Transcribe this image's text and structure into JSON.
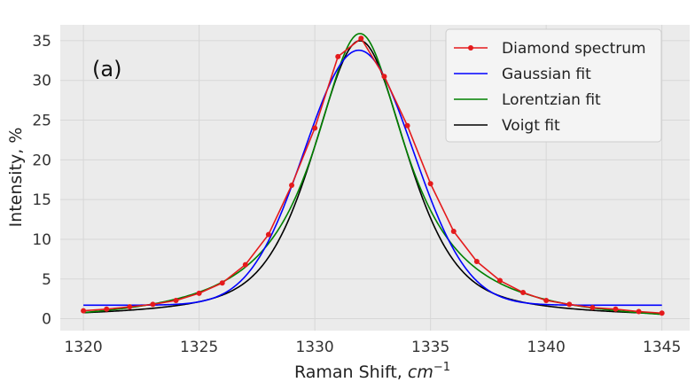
{
  "chart_data": {
    "type": "line",
    "xlabel": "Raman Shift, ",
    "xlabel_unit": "cm",
    "xlabel_unit_exp": "−1",
    "ylabel": "Intensity, %",
    "annotation": "(a)",
    "xlim": [
      1319,
      1346.2
    ],
    "ylim": [
      -1.5,
      37
    ],
    "xticks": [
      1320,
      1325,
      1330,
      1335,
      1340,
      1345
    ],
    "yticks": [
      0,
      5,
      10,
      15,
      20,
      25,
      30,
      35
    ],
    "grid": true,
    "legend_position": "top-right",
    "colors": {
      "background": "#ebebeb",
      "grid": "#d7d7d7",
      "diamond": "#e41a1c",
      "gaussian": "#0000ff",
      "lorentzian": "#008000",
      "voigt": "#000000"
    },
    "series": [
      {
        "name": "Diamond spectrum",
        "key": "diamond",
        "style": "line-markers",
        "x": [
          1320,
          1321,
          1322,
          1323,
          1324,
          1325,
          1326,
          1327,
          1328,
          1329,
          1330,
          1331,
          1332,
          1333,
          1334,
          1335,
          1336,
          1337,
          1338,
          1339,
          1340,
          1341,
          1342,
          1343,
          1344,
          1345
        ],
        "y": [
          1.0,
          1.2,
          1.5,
          1.8,
          2.3,
          3.2,
          4.5,
          6.8,
          10.6,
          16.8,
          24.0,
          33.0,
          35.3,
          30.5,
          24.3,
          17.0,
          11.0,
          7.2,
          4.8,
          3.3,
          2.3,
          1.8,
          1.4,
          1.2,
          0.9,
          0.7
        ]
      },
      {
        "name": "Gaussian fit",
        "key": "gaussian",
        "style": "line",
        "model": "gaussian",
        "params": {
          "amplitude": 32.1,
          "center": 1331.9,
          "sigma": 2.35,
          "offset": 1.7
        }
      },
      {
        "name": "Lorentzian fit",
        "key": "lorentzian",
        "style": "line",
        "model": "lorentzian",
        "params": {
          "amplitude": 36.6,
          "center": 1331.95,
          "gamma": 2.45,
          "offset": -0.7
        }
      },
      {
        "name": "Voigt fit",
        "key": "voigt",
        "style": "line",
        "model": "pseudo-voigt",
        "params": {
          "amplitude": 35.0,
          "center": 1331.95,
          "width": 2.42,
          "eta": 0.55,
          "offset": 0.0
        }
      }
    ]
  }
}
